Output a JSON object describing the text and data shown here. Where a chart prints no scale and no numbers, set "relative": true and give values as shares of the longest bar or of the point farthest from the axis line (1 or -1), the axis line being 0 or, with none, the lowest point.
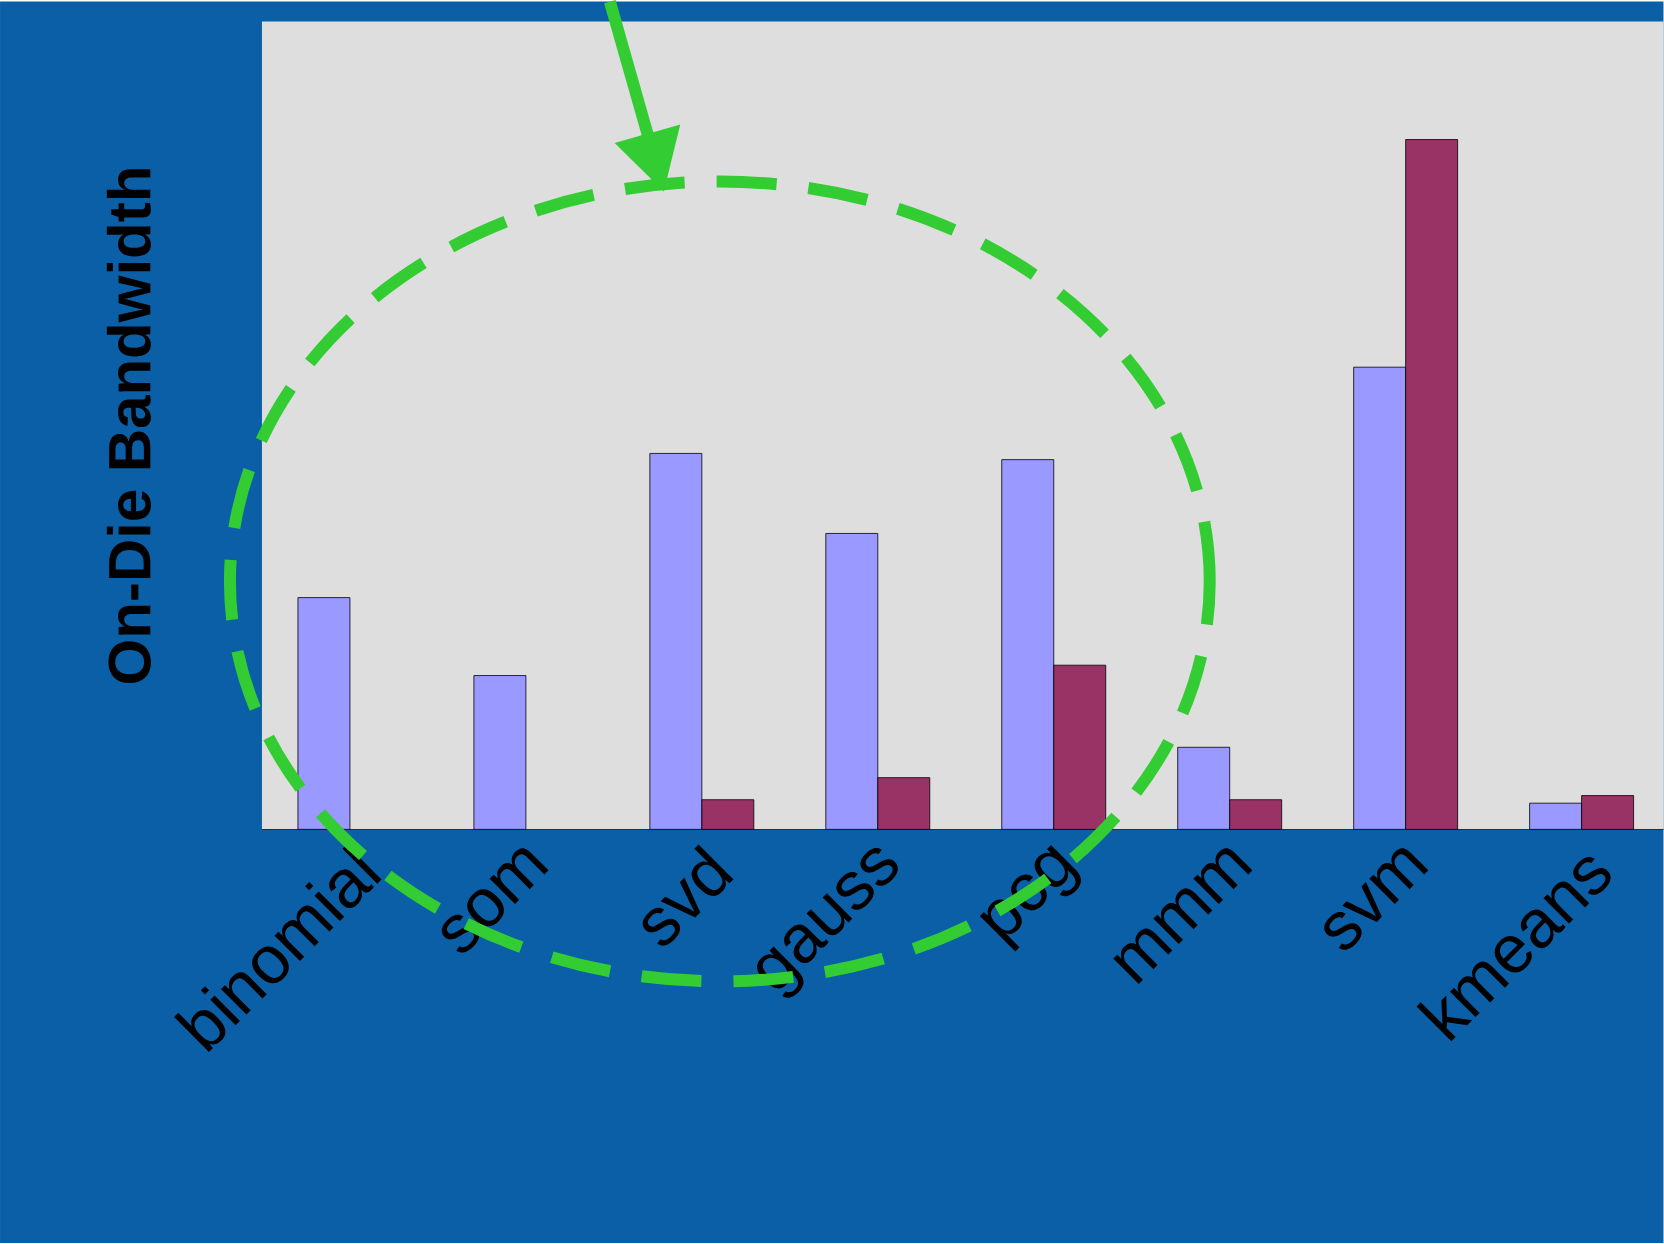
{
  "chart_data": {
    "type": "bar",
    "ylabel": "On-Die Bandwidth",
    "relative": true,
    "categories": [
      "binomial",
      "som",
      "svd",
      "gauss",
      "pcg",
      "mmm",
      "svm",
      "kmeans"
    ],
    "series": [
      {
        "color": "#9999ff",
        "values": [
          0.336,
          0.223,
          0.545,
          0.429,
          0.536,
          0.119,
          0.67,
          0.038
        ]
      },
      {
        "color": "#993366",
        "values": [
          null,
          null,
          0.043,
          0.075,
          0.238,
          0.043,
          1,
          0.049
        ]
      }
    ]
  }
}
